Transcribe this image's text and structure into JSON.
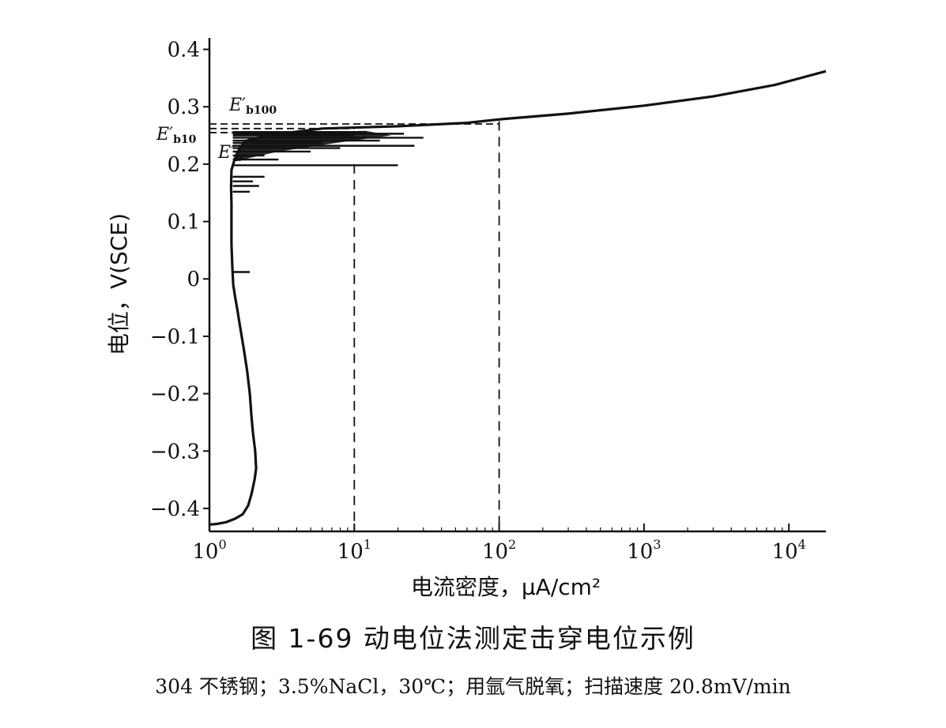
{
  "chart_data": {
    "type": "line",
    "title": "",
    "xlabel": "电流密度，μA/cm²",
    "ylabel": "电位，V(SCE)",
    "x_scale": "log",
    "xlim": [
      1,
      18000
    ],
    "ylim": [
      -0.44,
      0.42
    ],
    "x_ticks": [
      1,
      10,
      100,
      1000,
      10000
    ],
    "x_tick_labels": [
      {
        "base": "10",
        "exp": "0"
      },
      {
        "base": "10",
        "exp": "1"
      },
      {
        "base": "10",
        "exp": "2"
      },
      {
        "base": "10",
        "exp": "3"
      },
      {
        "base": "10",
        "exp": "4"
      }
    ],
    "y_ticks": [
      -0.4,
      -0.3,
      -0.2,
      -0.1,
      0,
      0.1,
      0.2,
      0.3,
      0.4
    ],
    "y_tick_labels": [
      "−0.4",
      "−0.3",
      "−0.2",
      "−0.1",
      "0",
      "0.1",
      "0.2",
      "0.3",
      "0.4"
    ],
    "grid": false,
    "series": [
      {
        "points": [
          [
            1.0,
            -0.428
          ],
          [
            1.12,
            -0.427
          ],
          [
            1.3,
            -0.424
          ],
          [
            1.5,
            -0.418
          ],
          [
            1.7,
            -0.41
          ],
          [
            1.85,
            -0.395
          ],
          [
            1.95,
            -0.375
          ],
          [
            2.05,
            -0.35
          ],
          [
            2.1,
            -0.33
          ],
          [
            2.07,
            -0.3
          ],
          [
            2.0,
            -0.27
          ],
          [
            1.95,
            -0.24
          ],
          [
            1.9,
            -0.2
          ],
          [
            1.82,
            -0.16
          ],
          [
            1.72,
            -0.12
          ],
          [
            1.62,
            -0.08
          ],
          [
            1.55,
            -0.05
          ],
          [
            1.5,
            -0.03
          ],
          [
            1.46,
            -0.01
          ],
          [
            1.44,
            0.02
          ],
          [
            1.42,
            0.06
          ],
          [
            1.42,
            0.1
          ],
          [
            1.42,
            0.13
          ],
          [
            1.41,
            0.16
          ],
          [
            1.42,
            0.19
          ],
          [
            1.5,
            0.21
          ],
          [
            1.6,
            0.225
          ],
          [
            1.75,
            0.24
          ],
          [
            2.5,
            0.25
          ],
          [
            6,
            0.262
          ],
          [
            20,
            0.266
          ],
          [
            60,
            0.272
          ],
          [
            100,
            0.278
          ],
          [
            300,
            0.288
          ],
          [
            1000,
            0.302
          ],
          [
            3000,
            0.318
          ],
          [
            8000,
            0.338
          ],
          [
            18000,
            0.362
          ]
        ]
      }
    ],
    "noise_spikes": [
      {
        "y": 0.198,
        "x": 20
      },
      {
        "y": 0.208,
        "x": 3
      },
      {
        "y": 0.215,
        "x": 2.4
      },
      {
        "y": 0.222,
        "x": 5
      },
      {
        "y": 0.228,
        "x": 8
      },
      {
        "y": 0.232,
        "x": 26
      },
      {
        "y": 0.237,
        "x": 6
      },
      {
        "y": 0.241,
        "x": 15
      },
      {
        "y": 0.246,
        "x": 30
      },
      {
        "y": 0.25,
        "x": 10
      },
      {
        "y": 0.253,
        "x": 22
      },
      {
        "y": 0.256,
        "x": 12
      },
      {
        "y": 0.162,
        "x": 2.2
      },
      {
        "y": 0.17,
        "x": 2.0
      },
      {
        "y": 0.178,
        "x": 2.4
      },
      {
        "y": 0.152,
        "x": 1.9
      },
      {
        "y": 0.012,
        "x": 1.9
      }
    ],
    "reference_lines": {
      "horizontal": [
        {
          "label_main": "E′",
          "label_sub": "b100",
          "y": 0.27,
          "x_end": 100
        },
        {
          "label_main": "E′",
          "label_sub": "b10",
          "y": 0.262,
          "x_end": 10
        },
        {
          "label_main": "E′",
          "label_sub": "b",
          "y": 0.255,
          "x_end": 2.5
        }
      ],
      "vertical": [
        {
          "x": 10,
          "y_top": 0.2
        },
        {
          "x": 100,
          "y_top": 0.275
        }
      ]
    },
    "colors": {
      "line": "#111111",
      "background": "#ffffff"
    }
  },
  "caption": {
    "figure": "图 1-69    动电位法测定击穿电位示例",
    "note": "304 不锈钢；3.5%NaCl，30℃；用氩气脱氧；扫描速度 20.8mV/min"
  }
}
